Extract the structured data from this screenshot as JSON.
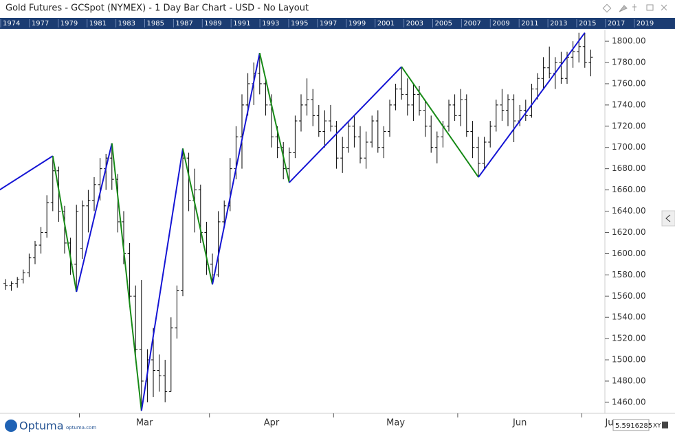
{
  "chart_data": {
    "type": "ohlc",
    "title": "Gold Futures - GCSpot (NYMEX) - 1 Day Bar Chart - USD - No Layout",
    "year_strip": [
      "1974",
      "1977",
      "1979",
      "1981",
      "1983",
      "1985",
      "1987",
      "1989",
      "1991",
      "1993",
      "1995",
      "1997",
      "1999",
      "2001",
      "2003",
      "2005",
      "2007",
      "2009",
      "2011",
      "2013",
      "2015",
      "2017",
      "2019"
    ],
    "categories": [
      null,
      null,
      null,
      null,
      null,
      null,
      null,
      null,
      null,
      null,
      null,
      null,
      null,
      "Mar",
      null,
      null,
      null,
      null,
      null,
      null,
      null,
      null,
      null,
      null,
      null,
      null,
      null,
      null,
      null,
      null,
      null,
      null,
      null,
      null,
      null,
      "Apr",
      null,
      null,
      null,
      null,
      null,
      null,
      null,
      null,
      null,
      null,
      null,
      null,
      null,
      null,
      null,
      null,
      null,
      null,
      null,
      null,
      "May",
      null,
      null,
      null,
      null,
      null,
      null,
      null,
      null,
      null,
      null,
      null,
      null,
      null,
      null,
      null,
      null,
      null,
      null,
      null,
      null,
      "Jun",
      null,
      null,
      null,
      null,
      null,
      null,
      null,
      null,
      null,
      null,
      null,
      null,
      null,
      null,
      null,
      null,
      null,
      null,
      null,
      null,
      "Ju",
      null
    ],
    "ohlc": [
      [
        1572,
        1576,
        1566,
        1570
      ],
      [
        1570,
        1574,
        1565,
        1572
      ],
      [
        1572,
        1578,
        1568,
        1576
      ],
      [
        1576,
        1585,
        1572,
        1582
      ],
      [
        1582,
        1600,
        1578,
        1596
      ],
      [
        1596,
        1612,
        1590,
        1608
      ],
      [
        1608,
        1625,
        1600,
        1620
      ],
      [
        1620,
        1655,
        1615,
        1648
      ],
      [
        1648,
        1692,
        1640,
        1678
      ],
      [
        1678,
        1682,
        1630,
        1640
      ],
      [
        1640,
        1645,
        1600,
        1610
      ],
      [
        1610,
        1615,
        1580,
        1590
      ],
      [
        1590,
        1646,
        1564,
        1640
      ],
      [
        1605,
        1650,
        1595,
        1645
      ],
      [
        1645,
        1660,
        1620,
        1650
      ],
      [
        1650,
        1672,
        1640,
        1665
      ],
      [
        1665,
        1690,
        1650,
        1680
      ],
      [
        1680,
        1694,
        1660,
        1690
      ],
      [
        1690,
        1704,
        1660,
        1670
      ],
      [
        1670,
        1675,
        1620,
        1630
      ],
      [
        1630,
        1640,
        1590,
        1600
      ],
      [
        1600,
        1610,
        1550,
        1560
      ],
      [
        1560,
        1570,
        1500,
        1510
      ],
      [
        1510,
        1575,
        1452,
        1480
      ],
      [
        1480,
        1510,
        1460,
        1500
      ],
      [
        1500,
        1530,
        1465,
        1490
      ],
      [
        1490,
        1505,
        1470,
        1485
      ],
      [
        1485,
        1500,
        1460,
        1470
      ],
      [
        1470,
        1540,
        1470,
        1530
      ],
      [
        1530,
        1570,
        1520,
        1565
      ],
      [
        1565,
        1699,
        1560,
        1690
      ],
      [
        1690,
        1695,
        1640,
        1650
      ],
      [
        1650,
        1680,
        1620,
        1660
      ],
      [
        1660,
        1665,
        1610,
        1620
      ],
      [
        1620,
        1630,
        1580,
        1590
      ],
      [
        1590,
        1600,
        1571,
        1580
      ],
      [
        1580,
        1640,
        1578,
        1630
      ],
      [
        1630,
        1650,
        1625,
        1645
      ],
      [
        1645,
        1690,
        1640,
        1680
      ],
      [
        1680,
        1720,
        1670,
        1710
      ],
      [
        1710,
        1750,
        1680,
        1740
      ],
      [
        1740,
        1770,
        1730,
        1760
      ],
      [
        1760,
        1780,
        1740,
        1770
      ],
      [
        1770,
        1789,
        1750,
        1760
      ],
      [
        1760,
        1765,
        1730,
        1740
      ],
      [
        1740,
        1750,
        1700,
        1710
      ],
      [
        1710,
        1720,
        1690,
        1700
      ],
      [
        1700,
        1705,
        1670,
        1680
      ],
      [
        1680,
        1700,
        1667,
        1695
      ],
      [
        1695,
        1730,
        1690,
        1725
      ],
      [
        1725,
        1750,
        1715,
        1740
      ],
      [
        1740,
        1765,
        1730,
        1745
      ],
      [
        1745,
        1755,
        1720,
        1730
      ],
      [
        1730,
        1740,
        1710,
        1715
      ],
      [
        1715,
        1735,
        1700,
        1725
      ],
      [
        1725,
        1740,
        1715,
        1720
      ],
      [
        1720,
        1725,
        1680,
        1690
      ],
      [
        1690,
        1710,
        1676,
        1700
      ],
      [
        1700,
        1725,
        1695,
        1720
      ],
      [
        1720,
        1730,
        1700,
        1710
      ],
      [
        1710,
        1720,
        1685,
        1690
      ],
      [
        1690,
        1715,
        1680,
        1705
      ],
      [
        1705,
        1730,
        1700,
        1725
      ],
      [
        1725,
        1735,
        1695,
        1700
      ],
      [
        1700,
        1720,
        1690,
        1715
      ],
      [
        1715,
        1745,
        1710,
        1740
      ],
      [
        1740,
        1760,
        1735,
        1755
      ],
      [
        1755,
        1776,
        1745,
        1750
      ],
      [
        1750,
        1765,
        1730,
        1740
      ],
      [
        1740,
        1760,
        1725,
        1750
      ],
      [
        1750,
        1758,
        1730,
        1735
      ],
      [
        1735,
        1745,
        1710,
        1720
      ],
      [
        1720,
        1730,
        1695,
        1700
      ],
      [
        1700,
        1715,
        1685,
        1710
      ],
      [
        1710,
        1725,
        1700,
        1720
      ],
      [
        1720,
        1745,
        1715,
        1740
      ],
      [
        1740,
        1750,
        1725,
        1730
      ],
      [
        1730,
        1755,
        1720,
        1745
      ],
      [
        1745,
        1750,
        1710,
        1715
      ],
      [
        1715,
        1725,
        1690,
        1700
      ],
      [
        1700,
        1710,
        1672,
        1685
      ],
      [
        1685,
        1710,
        1680,
        1705
      ],
      [
        1705,
        1725,
        1700,
        1720
      ],
      [
        1720,
        1745,
        1715,
        1740
      ],
      [
        1740,
        1755,
        1725,
        1735
      ],
      [
        1735,
        1750,
        1720,
        1745
      ],
      [
        1745,
        1750,
        1705,
        1725
      ],
      [
        1725,
        1740,
        1720,
        1735
      ],
      [
        1735,
        1745,
        1725,
        1730
      ],
      [
        1730,
        1760,
        1728,
        1755
      ],
      [
        1755,
        1770,
        1745,
        1765
      ],
      [
        1765,
        1785,
        1755,
        1775
      ],
      [
        1775,
        1795,
        1765,
        1770
      ],
      [
        1770,
        1785,
        1755,
        1780
      ],
      [
        1780,
        1790,
        1760,
        1765
      ],
      [
        1765,
        1790,
        1760,
        1785
      ],
      [
        1785,
        1800,
        1775,
        1790
      ],
      [
        1790,
        1808,
        1780,
        1795
      ],
      [
        1795,
        1808,
        1775,
        1780
      ],
      [
        1780,
        1792,
        1767,
        1785
      ],
      null,
      null
    ],
    "bar_color": "#000000",
    "zigzag": {
      "x": [
        -1,
        8,
        12,
        18,
        23,
        30,
        35,
        43,
        48,
        67,
        80,
        98
      ],
      "values": [
        1660,
        1692,
        1564,
        1704,
        1452,
        1699,
        1571,
        1789,
        1667,
        1776,
        1672,
        1808
      ],
      "up_color": "#1414d4",
      "down_color": "#178a17"
    },
    "ylim": [
      1449.6,
      1810.4
    ],
    "yticks": [
      {
        "value": 1460,
        "label": "1460.00"
      },
      {
        "value": 1480,
        "label": "1480.00"
      },
      {
        "value": 1500,
        "label": "1500.00"
      },
      {
        "value": 1520,
        "label": "1520.00"
      },
      {
        "value": 1540,
        "label": "1540.00"
      },
      {
        "value": 1560,
        "label": "1560.00"
      },
      {
        "value": 1580,
        "label": "1580.00"
      },
      {
        "value": 1600,
        "label": "1600.00"
      },
      {
        "value": 1620,
        "label": "1620.00"
      },
      {
        "value": 1640,
        "label": "1640.00"
      },
      {
        "value": 1660,
        "label": "1660.00"
      },
      {
        "value": 1680,
        "label": "1680.00"
      },
      {
        "value": 1700,
        "label": "1700.00"
      },
      {
        "value": 1720,
        "label": "1720.00"
      },
      {
        "value": 1740,
        "label": "1740.00"
      },
      {
        "value": 1760,
        "label": "1760.00"
      },
      {
        "value": 1780,
        "label": "1780.00"
      },
      {
        "value": 1800,
        "label": "1800.00"
      }
    ],
    "logo": "Optuma",
    "logo_url": "optuma.com",
    "scale_readout": "5.5916285",
    "scale_mode": "XY"
  }
}
